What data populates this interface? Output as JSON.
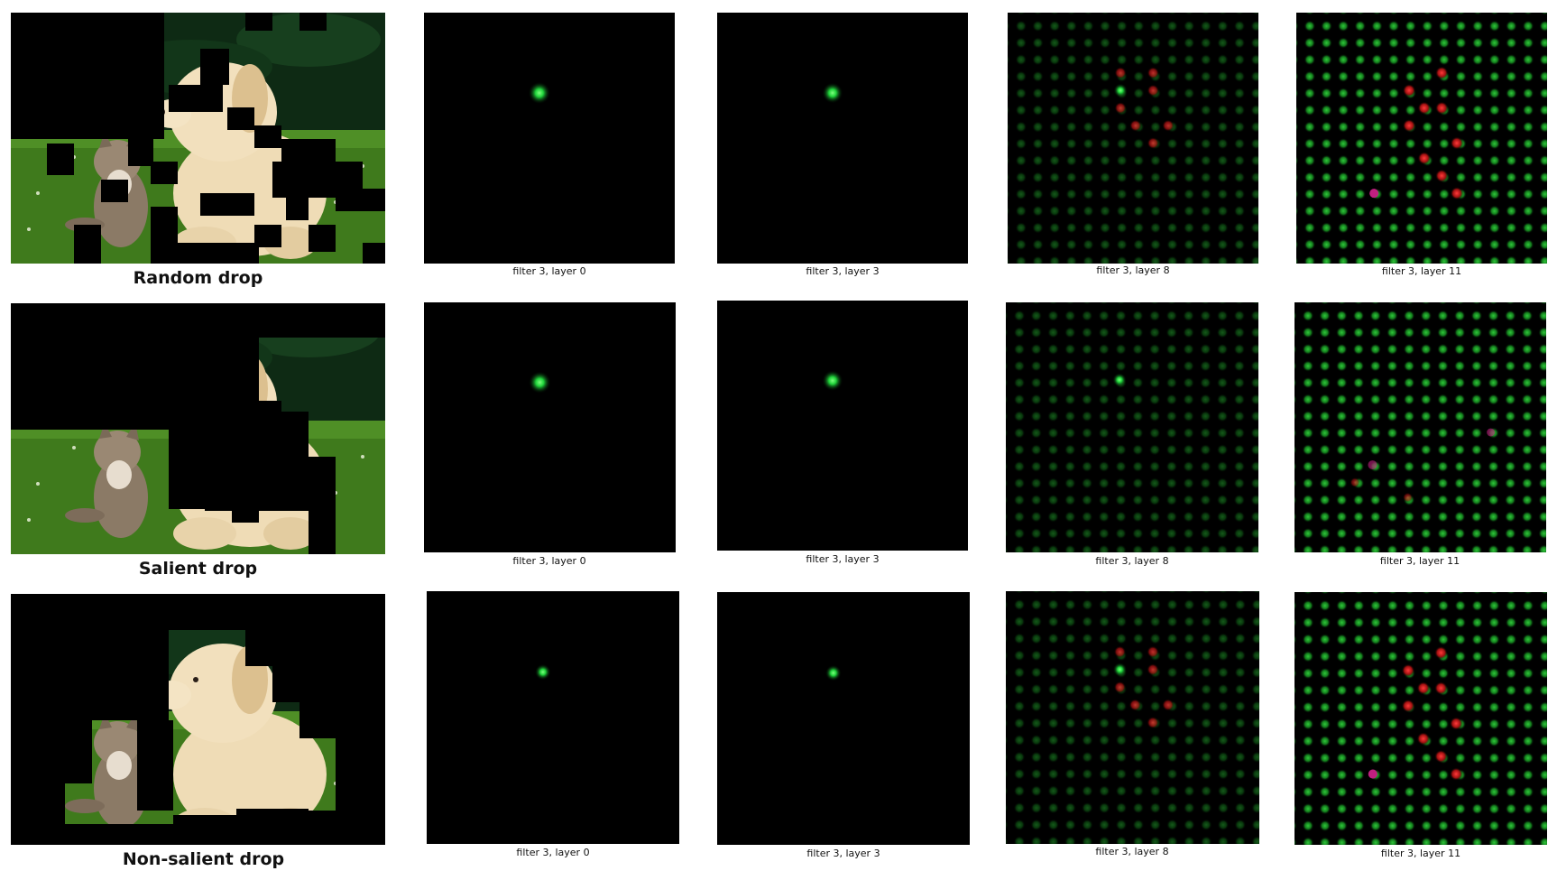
{
  "rows": [
    {
      "title": "Random drop",
      "masking": "random",
      "captions": [
        "filter 3, layer 0",
        "filter 3, layer 3",
        "filter 3, layer 8",
        "filter 3, layer 11"
      ]
    },
    {
      "title": "Salient drop",
      "masking": "salient",
      "captions": [
        "filter 3, layer 0",
        "filter 3, layer 3",
        "filter 3, layer 8",
        "filter 3, layer 11"
      ]
    },
    {
      "title": "Non-salient drop",
      "masking": "non-salient",
      "captions": [
        "filter 3, layer 0",
        "filter 3, layer 3",
        "filter 3, layer 8",
        "filter 3, layer 11"
      ]
    }
  ],
  "colors": {
    "background": "#ffffff",
    "mask": "#000000",
    "grass": "#3f7a1c",
    "foliage": "#10301a",
    "puppy": "#efdcb6",
    "kitten": "#8b7a66",
    "peak_green": "#1fd23a",
    "activation_red": "#d21a1a",
    "activation_magenta": "#c02080"
  }
}
